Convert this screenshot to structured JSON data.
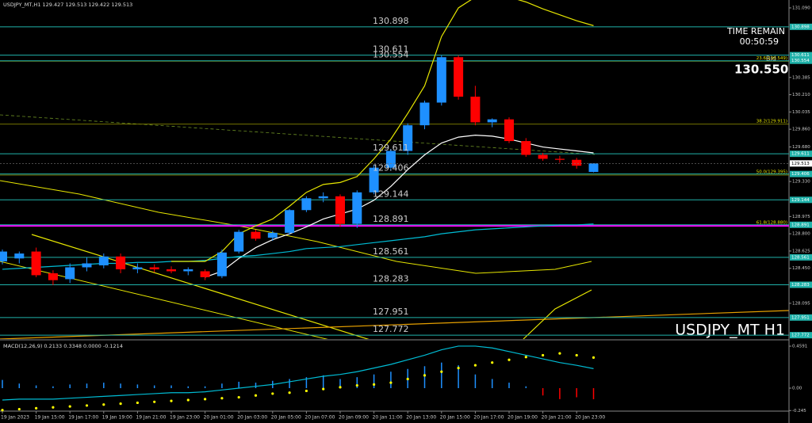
{
  "chart_data": {
    "type": "candlestick",
    "header": "USDJPY_MT,H1  129.427 129.513 129.422 129.513",
    "categories": [
      "19 Jan 2023",
      null,
      "19 Jan 15:00",
      null,
      "19 Jan 17:00",
      null,
      "19 Jan 19:00",
      null,
      "19 Jan 21:00",
      null,
      "19 Jan 23:00",
      null,
      "20 Jan 01:00",
      null,
      "20 Jan 03:00",
      null,
      "20 Jan 05:00",
      null,
      "20 Jan 07:00",
      null,
      "20 Jan 09:00",
      null,
      "20 Jan 11:00",
      null,
      "20 Jan 13:00",
      null,
      "20 Jan 15:00",
      null,
      "20 Jan 17:00",
      null,
      "20 Jan 19:00",
      null,
      "20 Jan 21:00",
      null,
      "20 Jan 23:00",
      null
    ],
    "open": [
      128.52,
      128.55,
      128.62,
      128.4,
      128.34,
      128.46,
      128.48,
      128.57,
      128.44,
      128.46,
      128.44,
      128.42,
      128.42,
      128.37,
      128.62,
      128.82,
      128.76,
      128.81,
      129.04,
      129.16,
      129.18,
      128.9,
      129.22,
      129.47,
      129.64,
      129.9,
      130.13,
      130.59,
      130.19,
      129.93,
      129.96,
      129.74,
      129.6,
      129.56,
      129.55,
      129.427
    ],
    "high": [
      128.64,
      128.62,
      128.66,
      128.43,
      128.5,
      128.56,
      128.6,
      128.6,
      128.5,
      128.49,
      128.47,
      128.46,
      128.44,
      128.64,
      128.84,
      128.84,
      128.83,
      129.05,
      129.18,
      129.22,
      129.2,
      129.24,
      129.5,
      129.66,
      129.92,
      130.15,
      130.61,
      130.61,
      130.3,
      129.97,
      129.98,
      129.77,
      129.62,
      129.59,
      129.57,
      129.513
    ],
    "low": [
      128.49,
      128.5,
      128.36,
      128.28,
      128.3,
      128.42,
      128.45,
      128.4,
      128.4,
      128.41,
      128.4,
      128.38,
      128.33,
      128.35,
      128.6,
      128.73,
      128.73,
      128.79,
      129.02,
      129.12,
      128.87,
      128.86,
      129.2,
      129.44,
      129.6,
      129.86,
      130.1,
      130.16,
      129.9,
      129.88,
      129.72,
      129.58,
      129.54,
      129.52,
      129.46,
      129.422
    ],
    "close": [
      128.62,
      128.6,
      128.38,
      128.33,
      128.46,
      128.5,
      128.57,
      128.44,
      128.46,
      128.44,
      128.42,
      128.44,
      128.36,
      128.61,
      128.82,
      128.75,
      128.81,
      129.04,
      129.16,
      129.18,
      128.9,
      129.22,
      129.47,
      129.64,
      129.9,
      130.13,
      130.59,
      130.19,
      129.93,
      129.96,
      129.74,
      129.6,
      129.56,
      129.55,
      129.49,
      129.513
    ],
    "up_color": "#1e90ff",
    "down_color": "#ff0000",
    "ylim": [
      127.733,
      131.17
    ],
    "yticks": [
      {
        "value": 131.09,
        "label": "131.090"
      },
      {
        "value": 130.385,
        "label": "130.385"
      },
      {
        "value": 130.21,
        "label": "130.210"
      },
      {
        "value": 130.035,
        "label": "130.035"
      },
      {
        "value": 129.86,
        "label": "129.860"
      },
      {
        "value": 129.68,
        "label": "129.680"
      },
      {
        "value": 129.33,
        "label": "129.330"
      },
      {
        "value": 128.975,
        "label": "128.975"
      },
      {
        "value": 128.8,
        "label": "128.800"
      },
      {
        "value": 128.625,
        "label": "128.625"
      },
      {
        "value": 128.45,
        "label": "128.450"
      },
      {
        "value": 128.095,
        "label": "128.095"
      }
    ],
    "levels": [
      130.898,
      130.611,
      130.554,
      129.611,
      129.406,
      129.144,
      128.891,
      128.561,
      128.283,
      127.951,
      127.772
    ],
    "level_color": "#20b2aa",
    "fib": [
      {
        "value": 130.549,
        "label": "23.6(130.549)",
        "color": "#9a9a00"
      },
      {
        "value": 129.911,
        "label": "38.2(129.911)",
        "color": "#9a9a00"
      },
      {
        "value": 129.395,
        "label": "50.0(129.395)",
        "color": "#9a9a00"
      },
      {
        "value": 128.88,
        "label": "61.8(128.880)",
        "color": "#ff00ff"
      }
    ],
    "current_price": 129.513,
    "indicators": [
      {
        "color": "#ffffff",
        "values": [
          null,
          null,
          null,
          null,
          null,
          null,
          null,
          null,
          null,
          null,
          null,
          null,
          128.36,
          128.42,
          128.55,
          128.66,
          128.74,
          128.8,
          128.87,
          128.95,
          129.0,
          129.05,
          129.14,
          129.28,
          129.45,
          129.6,
          129.72,
          129.78,
          129.8,
          129.79,
          129.76,
          129.72,
          129.68,
          129.66,
          129.64,
          129.62
        ]
      },
      {
        "color": "#00bcd4",
        "values": [
          128.44,
          128.45,
          128.46,
          128.47,
          128.48,
          128.49,
          128.5,
          128.5,
          128.51,
          128.51,
          128.52,
          128.52,
          128.53,
          128.55,
          128.57,
          128.58,
          128.6,
          128.62,
          128.65,
          128.66,
          128.67,
          128.69,
          128.71,
          128.73,
          128.75,
          128.77,
          128.8,
          128.82,
          128.84,
          128.85,
          128.86,
          128.87,
          128.88,
          128.89,
          128.89,
          128.9
        ]
      },
      {
        "color": "#e6e600",
        "values": [
          null,
          null,
          null,
          null,
          null,
          null,
          null,
          null,
          null,
          null,
          128.52,
          128.52,
          128.52,
          128.62,
          128.8,
          128.88,
          128.95,
          129.08,
          129.22,
          129.3,
          129.32,
          129.38,
          129.56,
          129.76,
          130.02,
          130.3,
          130.8,
          131.09,
          131.2,
          131.22,
          131.2,
          131.15,
          131.08,
          131.02,
          130.96,
          130.91
        ]
      }
    ],
    "timer_label": "TIME REMAIN",
    "timer": "00:50:59",
    "bid_label": "Bid",
    "bid": "130.550",
    "watermark": "USDJPY_MT H1",
    "macd": {
      "label": "MACD(12,26,9) 0.2133 0.3348 0.0000 -0.1214",
      "ylim": [
        -0.26,
        0.52
      ],
      "yticks": [
        0.4591,
        {
          "value": 0,
          "label": "0.00"
        },
        -0.245
      ],
      "histogram": [
        0.09,
        0.05,
        0.03,
        0.02,
        0.04,
        0.05,
        0.06,
        0.05,
        0.04,
        0.03,
        0.03,
        0.02,
        0.02,
        0.05,
        0.07,
        0.06,
        0.08,
        0.1,
        0.12,
        0.14,
        0.1,
        0.12,
        0.15,
        0.18,
        0.21,
        0.24,
        0.28,
        0.25,
        0.15,
        0.1,
        0.06,
        0.02,
        -0.08,
        -0.12,
        -0.1,
        -0.1214
      ],
      "line": [
        -0.13,
        -0.12,
        -0.12,
        -0.12,
        -0.11,
        -0.1,
        -0.09,
        -0.08,
        -0.07,
        -0.06,
        -0.05,
        -0.05,
        -0.04,
        -0.02,
        0.0,
        0.02,
        0.04,
        0.07,
        0.1,
        0.13,
        0.15,
        0.18,
        0.22,
        0.26,
        0.31,
        0.36,
        0.42,
        0.46,
        0.46,
        0.44,
        0.4,
        0.36,
        0.32,
        0.28,
        0.25,
        0.2133
      ],
      "signal": [
        -0.24,
        -0.23,
        -0.22,
        -0.21,
        -0.2,
        -0.19,
        -0.18,
        -0.17,
        -0.16,
        -0.15,
        -0.14,
        -0.13,
        -0.12,
        -0.11,
        -0.1,
        -0.08,
        -0.06,
        -0.05,
        -0.03,
        -0.01,
        0.01,
        0.03,
        0.04,
        0.06,
        0.1,
        0.14,
        0.18,
        0.22,
        0.25,
        0.28,
        0.31,
        0.34,
        0.36,
        0.38,
        0.36,
        0.3348
      ],
      "up_color": "#1e90ff",
      "down_color": "#ff0000",
      "line_color": "#00bcd4",
      "signal_color": "#ffff00"
    }
  }
}
